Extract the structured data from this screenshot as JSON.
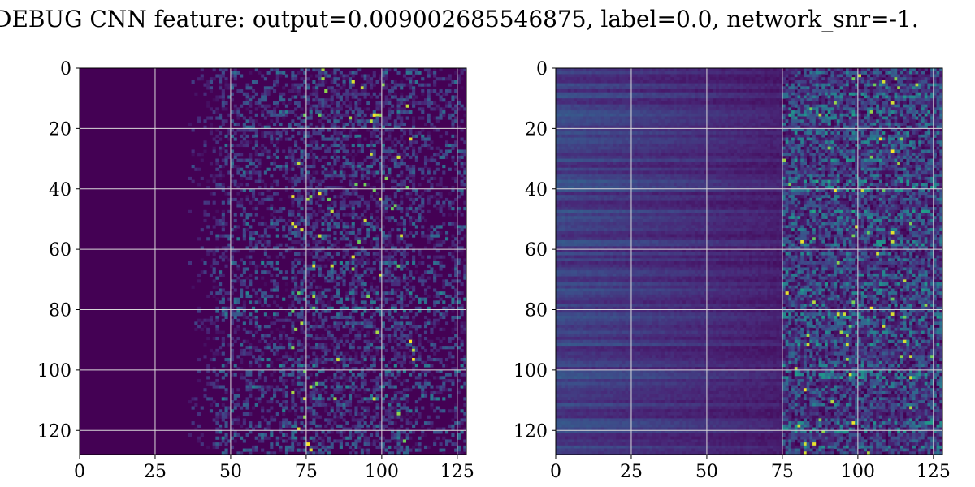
{
  "figure": {
    "title": "DEBUG CNN feature: output=0.009002685546875, label=0.0, network_snr=-1."
  },
  "chart_data": [
    {
      "type": "heatmap",
      "title": "",
      "xlabel": "",
      "ylabel": "",
      "rows": 128,
      "cols": 128,
      "xlim": [
        0,
        128
      ],
      "ylim": [
        128,
        0
      ],
      "xticks": [
        0,
        25,
        50,
        75,
        100,
        125
      ],
      "yticks": [
        0,
        20,
        40,
        60,
        80,
        100,
        120
      ],
      "grid": true,
      "colormap": "viridis",
      "colors": {
        "low": "#440154",
        "high": "#fde725",
        "grid": "#d9d9d9"
      },
      "texture": {
        "dark_until_col": 35,
        "active_from_col": 45,
        "hot_col_range": [
          70,
          110
        ],
        "baseline": 0.02,
        "active_level": 0.38,
        "seed": 17
      }
    },
    {
      "type": "heatmap",
      "title": "",
      "xlabel": "",
      "ylabel": "",
      "rows": 128,
      "cols": 128,
      "xlim": [
        0,
        128
      ],
      "ylim": [
        128,
        0
      ],
      "xticks": [
        0,
        25,
        50,
        75,
        100,
        125
      ],
      "yticks": [
        0,
        20,
        40,
        60,
        80,
        100,
        120
      ],
      "grid": true,
      "colormap": "viridis",
      "colors": {
        "low": "#440154",
        "high": "#fde725",
        "grid": "#d9d9d9"
      },
      "texture": {
        "dark_until_col": 0,
        "active_from_col": 75,
        "hot_col_range": [
          75,
          128
        ],
        "baseline": 0.22,
        "active_level": 0.42,
        "seed": 91
      }
    }
  ]
}
